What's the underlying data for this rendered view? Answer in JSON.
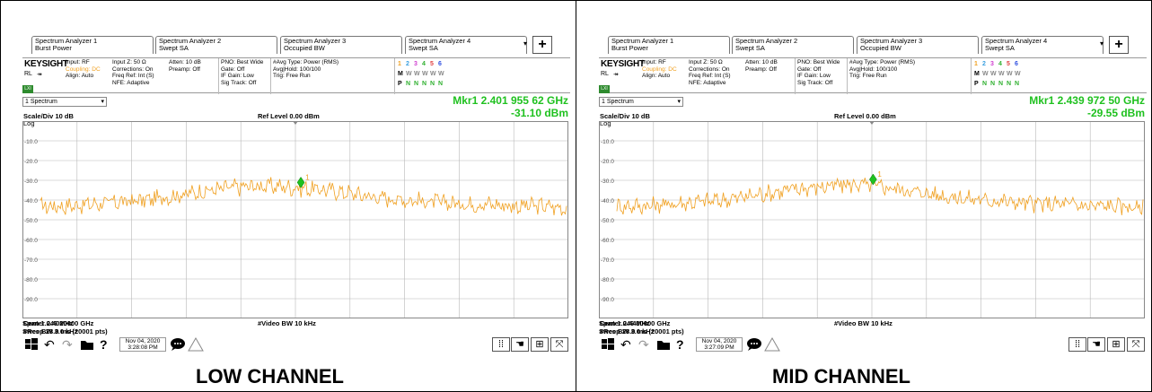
{
  "colors": {
    "trace": "#f0a020",
    "marker": "#1fc11f",
    "grid": "#b8b8b8"
  },
  "panels": [
    {
      "caption": "LOW CHANNEL",
      "tabs": [
        {
          "line1": "Spectrum Analyzer 1",
          "line2": "Burst Power"
        },
        {
          "line1": "Spectrum Analyzer 2",
          "line2": "Swept SA"
        },
        {
          "line1": "Spectrum Analyzer 3",
          "line2": "Occupied BW"
        },
        {
          "line1": "Spectrum Analyzer 4",
          "line2": "Swept SA"
        }
      ],
      "tab_dropdown": "▾",
      "tab_add": "+",
      "brand": "KEYSIGHT",
      "rl": "RL",
      "arrow": "↠",
      "lxi": "LXI",
      "info": {
        "col1": [
          "Input: RF",
          "Coupling: DC",
          "Align: Auto"
        ],
        "col2": [
          "Input Z: 50 Ω",
          "Corrections: On",
          "Freq Ref: Int (S)",
          "NFE: Adaptive"
        ],
        "col3": [
          "Atten: 10 dB",
          "Preamp: Off"
        ],
        "col4": [
          "PNO: Best Wide",
          "Gate: Off",
          "IF Gain: Low",
          "Sig Track: Off"
        ],
        "col5": [
          "#Avg Type: Power (RMS)",
          "Avg|Hold: 100/100",
          "Trig: Free Run"
        ]
      },
      "trace_nums": [
        "1",
        "2",
        "3",
        "4",
        "5",
        "6"
      ],
      "trace_m": [
        "M",
        "W",
        "W",
        "W",
        "W",
        "W"
      ],
      "trace_p": [
        "P",
        "N",
        "N",
        "N",
        "N",
        "N"
      ],
      "view_select": "1 Spectrum",
      "marker_freq": "Mkr1  2.401 955 62 GHz",
      "marker_amp": "-31.10 dBm",
      "scale": "Scale/Div 10 dB",
      "ref_level": "Ref Level 0.00 dBm",
      "log": "Log",
      "y_ticks": [
        "-10.0",
        "-20.0",
        "-30.0",
        "-40.0",
        "-50.0",
        "-60.0",
        "-70.0",
        "-80.0",
        "-90.0"
      ],
      "center": "Center 2.4020000 GHz",
      "video_bw": "#Video BW 10 kHz",
      "span": "Span 1.046 MHz",
      "res_bw": "#Res BW 3.0 kHz",
      "sweep": "Sweep 28.0 ms (20001 pts)",
      "date": "Nov 04, 2020",
      "time": "3:28:08 PM",
      "marker_label": "1",
      "chart_data": {
        "type": "line",
        "xlabel": "",
        "ylabel": "",
        "ylim": [
          -100,
          0
        ],
        "marker": {
          "x": 0.495,
          "y": -31.1
        },
        "trace_baseline": [
          -43,
          -43,
          -42,
          -41,
          -40,
          -38,
          -36,
          -34,
          -33,
          -33,
          -34,
          -35,
          -37,
          -39,
          -40,
          -41,
          -42,
          -42,
          -43,
          -43,
          -44
        ]
      }
    },
    {
      "caption": "MID CHANNEL",
      "tabs": [
        {
          "line1": "Spectrum Analyzer 1",
          "line2": "Burst Power"
        },
        {
          "line1": "Spectrum Analyzer 2",
          "line2": "Swept SA"
        },
        {
          "line1": "Spectrum Analyzer 3",
          "line2": "Occupied BW"
        },
        {
          "line1": "Spectrum Analyzer 4",
          "line2": "Swept SA"
        }
      ],
      "tab_dropdown": "▾",
      "tab_add": "+",
      "brand": "KEYSIGHT",
      "rl": "RL",
      "arrow": "↠",
      "lxi": "LXI",
      "info": {
        "col1": [
          "Input: RF",
          "Coupling: DC",
          "Align: Auto"
        ],
        "col2": [
          "Input Z: 50 Ω",
          "Corrections: On",
          "Freq Ref: Int (S)",
          "NFE: Adaptive"
        ],
        "col3": [
          "Atten: 10 dB",
          "Preamp: Off"
        ],
        "col4": [
          "PNO: Best Wide",
          "Gate: Off",
          "IF Gain: Low",
          "Sig Track: Off"
        ],
        "col5": [
          "#Avg Type: Power (RMS)",
          "Avg|Hold: 100/100",
          "Trig: Free Run"
        ]
      },
      "trace_nums": [
        "1",
        "2",
        "3",
        "4",
        "5",
        "6"
      ],
      "trace_m": [
        "M",
        "W",
        "W",
        "W",
        "W",
        "W"
      ],
      "trace_p": [
        "P",
        "N",
        "N",
        "N",
        "N",
        "N"
      ],
      "view_select": "1 Spectrum",
      "marker_freq": "Mkr1  2.439 972 50 GHz",
      "marker_amp": "-29.55 dBm",
      "scale": "Scale/Div 10 dB",
      "ref_level": "Ref Level 0.00 dBm",
      "log": "Log",
      "y_ticks": [
        "-10.0",
        "-20.0",
        "-30.0",
        "-40.0",
        "-50.0",
        "-60.0",
        "-70.0",
        "-80.0",
        "-90.0"
      ],
      "center": "Center 2.4400000 GHz",
      "video_bw": "#Video BW 10 kHz",
      "span": "Span 1.046 MHz",
      "res_bw": "#Res BW 3.0 kHz",
      "sweep": "Sweep 28.0 ms (20001 pts)",
      "date": "Nov 04, 2020",
      "time": "3:27:09 PM",
      "marker_label": "1",
      "chart_data": {
        "type": "line",
        "xlabel": "",
        "ylabel": "",
        "ylim": [
          -100,
          0
        ],
        "marker": {
          "x": 0.487,
          "y": -29.55
        },
        "trace_baseline": [
          -43,
          -43,
          -42,
          -41,
          -40,
          -38,
          -36,
          -34,
          -33,
          -32,
          -33,
          -35,
          -37,
          -39,
          -40,
          -41,
          -42,
          -42,
          -43,
          -43,
          -44
        ]
      }
    }
  ]
}
